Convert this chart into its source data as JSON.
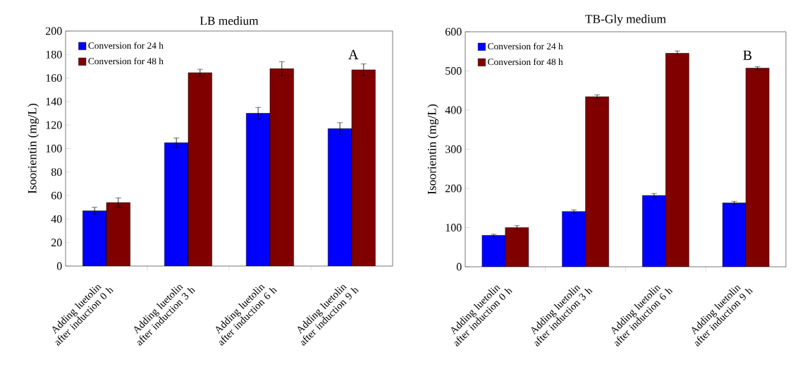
{
  "chart_data": [
    {
      "type": "bar",
      "title": "LB medium",
      "ylabel": "Isoorientin (mg/L)",
      "categories": [
        "Adding luetolin after induction 0 h",
        "Adding luetolin after induction 3 h",
        "Adding luetolin after induction 6 h",
        "Adding luetolin after induction 9 h"
      ],
      "series": [
        {
          "name": "Conversion for 24 h",
          "color": "#0000ff",
          "values": [
            47,
            105,
            130,
            117
          ],
          "errors": [
            3,
            4,
            5,
            5
          ]
        },
        {
          "name": "Conversion for 48 h",
          "color": "#800000",
          "values": [
            54,
            164.5,
            168,
            167
          ],
          "errors": [
            4,
            3,
            6,
            5
          ]
        }
      ],
      "ylim": [
        0,
        200
      ],
      "yticks": [
        0,
        20,
        40,
        60,
        80,
        100,
        120,
        140,
        160,
        180,
        200
      ],
      "legend": "top left",
      "annotations": [
        "A"
      ]
    },
    {
      "type": "bar",
      "title": "TB-Gly medium",
      "ylabel": "Isoorientin (mg/L)",
      "categories": [
        "Adding luetolin after induction 0 h",
        "Adding luetolin after induction 3 h",
        "Adding luetolin after induction 6 h",
        "Adding luetolin after induction 9 h"
      ],
      "series": [
        {
          "name": "Conversion for 24 h",
          "color": "#0000ff",
          "values": [
            80,
            141,
            182,
            163
          ],
          "errors": [
            3,
            4,
            5,
            4
          ]
        },
        {
          "name": "Conversion for 48 h",
          "color": "#800000",
          "values": [
            100,
            434,
            545,
            507
          ],
          "errors": [
            5,
            5,
            6,
            4
          ]
        }
      ],
      "ylim": [
        0,
        600
      ],
      "yticks": [
        0,
        100,
        200,
        300,
        400,
        500,
        600
      ],
      "legend": "top left",
      "annotations": [
        "B"
      ]
    }
  ]
}
